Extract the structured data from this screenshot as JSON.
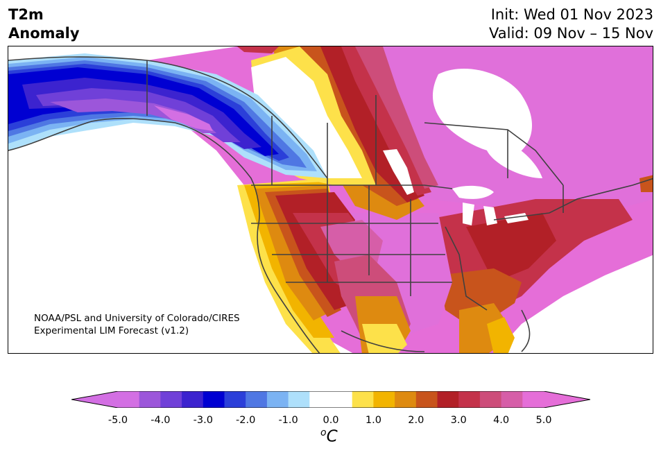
{
  "title": {
    "line1": "T2m",
    "line2": "Anomaly"
  },
  "header": {
    "init": "Init: Wed 01 Nov 2023",
    "valid": "Valid: 09 Nov – 15 Nov"
  },
  "credit": {
    "line1": "NOAA/PSL and University of Colorado/CIRES",
    "line2": "Experimental LIM Forecast (v1.2)"
  },
  "colorbar": {
    "colors": [
      "#d36fe3",
      "#9c56da",
      "#7040d8",
      "#3c23cf",
      "#0000d2",
      "#2b3fd9",
      "#4f77e3",
      "#7bb3f3",
      "#aee0fb",
      "#ffffff",
      "#ffffff",
      "#fde14a",
      "#f2b400",
      "#de8a10",
      "#c8541c",
      "#b22027",
      "#c4324a",
      "#cd4d7a",
      "#d65ea8",
      "#e56ed8"
    ],
    "ticks": [
      "-5.0",
      "-4.0",
      "-3.0",
      "-2.0",
      "-1.0",
      "0.0",
      "1.0",
      "2.0",
      "3.0",
      "4.0",
      "5.0"
    ],
    "unit_base": "C",
    "unit_sup": "o"
  }
}
